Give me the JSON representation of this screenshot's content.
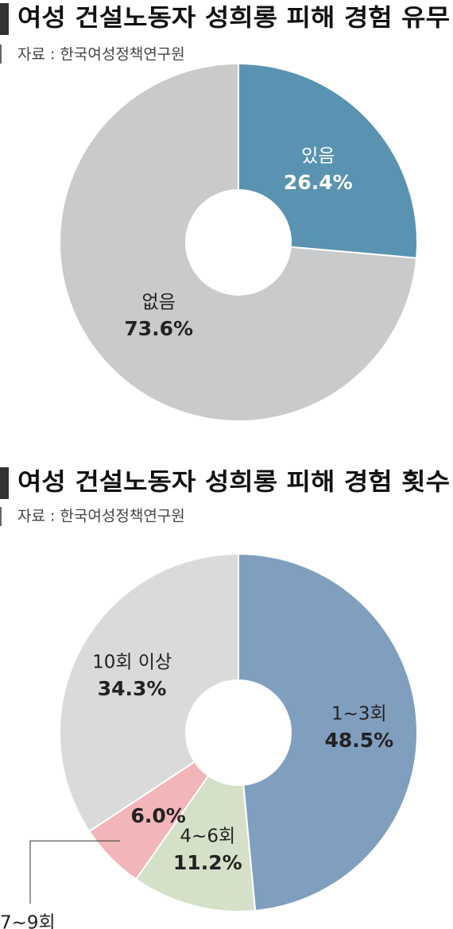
{
  "chart_data": [
    {
      "type": "pie",
      "title": "여성 건설노동자 성희롱 피해 경험 유무",
      "subtitle": "자료 : 한국여성정책연구원",
      "categories": [
        "있음",
        "없음"
      ],
      "values": [
        26.4,
        73.6
      ],
      "value_labels": [
        "26.4%",
        "73.6%"
      ],
      "colors": [
        "#5a93b1",
        "#c9cacc"
      ]
    },
    {
      "type": "pie",
      "title": "여성 건설노동자 성희롱 피해 경험 횟수",
      "subtitle": "자료 : 한국여성정책연구원",
      "categories": [
        "1~3회",
        "4~6회",
        "7~9회",
        "10회 이상"
      ],
      "values": [
        48.5,
        11.2,
        6.0,
        34.3
      ],
      "value_labels": [
        "48.5%",
        "11.2%",
        "6.0%",
        "34.3%"
      ],
      "colors": [
        "#809fbf",
        "#d4e0c7",
        "#f2b5b9",
        "#dadada"
      ]
    }
  ]
}
